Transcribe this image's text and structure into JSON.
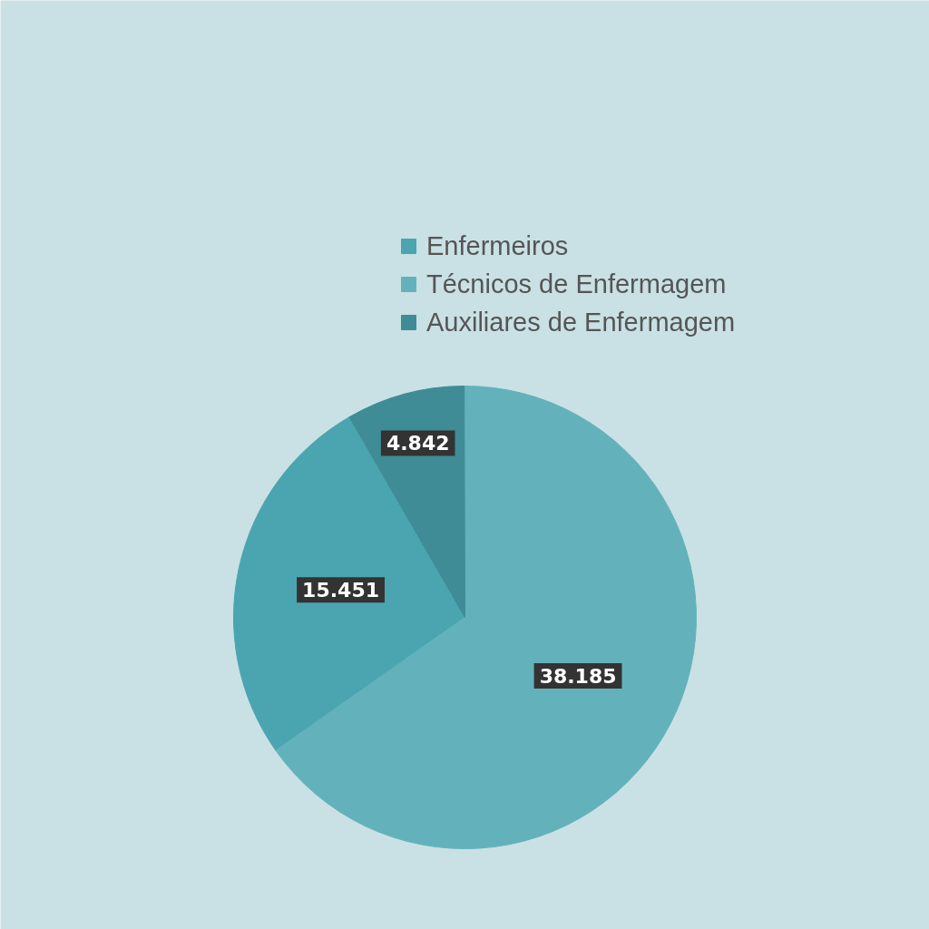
{
  "chart_data": {
    "type": "pie",
    "categories": [
      "Enfermeiros",
      "Técnicos de Enfermagem",
      "Auxiliares de Enfermagem"
    ],
    "values": [
      15451,
      38185,
      4842
    ],
    "colors": [
      "#4aa5b0",
      "#63b2bb",
      "#3f8c96"
    ],
    "value_labels": [
      "15.451",
      "38.185",
      "4.842"
    ],
    "legend": "top right"
  }
}
